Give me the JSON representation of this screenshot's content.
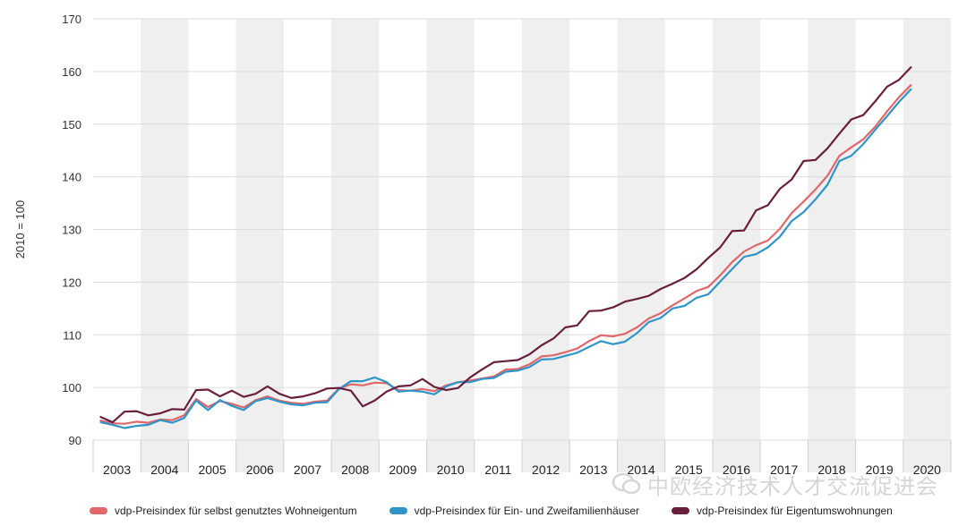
{
  "chart_data": {
    "type": "line",
    "ylabel": "2010 = 100",
    "ylim": [
      90,
      170
    ],
    "yticks": [
      90,
      100,
      110,
      120,
      130,
      140,
      150,
      160,
      170
    ],
    "year_labels": [
      "2003",
      "2004",
      "2005",
      "2006",
      "2007",
      "2008",
      "2009",
      "2010",
      "2011",
      "2012",
      "2013",
      "2014",
      "2015",
      "2016",
      "2017",
      "2018",
      "2019",
      "2020"
    ],
    "shaded_years": [
      "2004",
      "2006",
      "2008",
      "2010",
      "2012",
      "2014",
      "2016",
      "2018",
      "2020"
    ],
    "quarters_per_year": 4,
    "series": [
      {
        "name": "vdp-Preisindex für selbst genutztes Wohneigentum",
        "color": "#e0676a",
        "values": [
          93.7,
          93.2,
          93.1,
          93.5,
          93.3,
          93.9,
          93.8,
          94.7,
          97.8,
          96.3,
          97.4,
          96.9,
          96.2,
          97.6,
          98.3,
          97.5,
          97.1,
          96.9,
          97.3,
          97.5,
          99.8,
          100.6,
          100.4,
          100.9,
          100.8,
          99.5,
          99.4,
          99.7,
          99.3,
          100.4,
          101.0,
          101.3,
          101.7,
          102.1,
          103.4,
          103.5,
          104.4,
          105.9,
          106.1,
          106.7,
          107.4,
          108.8,
          109.9,
          109.7,
          110.2,
          111.4,
          113.1,
          114.1,
          115.6,
          116.9,
          118.3,
          119.1,
          121.3,
          123.8,
          125.8,
          127.0,
          127.9,
          130.1,
          133.1,
          135.3,
          137.6,
          140.2,
          144.0,
          145.6,
          147.1,
          149.5,
          152.4,
          155.1,
          157.4
        ]
      },
      {
        "name": "vdp-Preisindex für Ein- und Zweifamilienhäuser",
        "color": "#2f95c8",
        "values": [
          93.4,
          92.9,
          92.3,
          92.7,
          92.9,
          93.8,
          93.3,
          94.2,
          97.5,
          95.7,
          97.6,
          96.5,
          95.7,
          97.4,
          98.0,
          97.3,
          96.8,
          96.6,
          97.1,
          97.2,
          99.7,
          101.2,
          101.2,
          101.9,
          101.0,
          99.2,
          99.4,
          99.2,
          98.7,
          100.2,
          101.0,
          101.0,
          101.6,
          101.8,
          103.0,
          103.2,
          103.9,
          105.3,
          105.4,
          106.0,
          106.6,
          107.7,
          108.8,
          108.2,
          108.7,
          110.3,
          112.4,
          113.2,
          115.0,
          115.5,
          117.0,
          117.7,
          120.1,
          122.5,
          124.8,
          125.3,
          126.6,
          128.6,
          131.6,
          133.3,
          135.7,
          138.5,
          143.0,
          144.0,
          146.2,
          148.9,
          151.5,
          154.2,
          156.6
        ]
      },
      {
        "name": "vdp-Preisindex für Eigentumswohnungen",
        "color": "#6a1e3e",
        "values": [
          94.4,
          93.4,
          95.4,
          95.5,
          94.7,
          95.1,
          95.9,
          95.8,
          99.5,
          99.6,
          98.3,
          99.4,
          98.2,
          98.8,
          100.2,
          98.8,
          98.0,
          98.3,
          98.9,
          99.8,
          99.9,
          99.4,
          96.4,
          97.5,
          99.2,
          100.2,
          100.4,
          101.6,
          100.1,
          99.5,
          99.9,
          101.9,
          103.4,
          104.8,
          105.0,
          105.2,
          106.3,
          108.0,
          109.3,
          111.4,
          111.8,
          114.5,
          114.6,
          115.2,
          116.3,
          116.8,
          117.4,
          118.7,
          119.7,
          120.8,
          122.4,
          124.6,
          126.6,
          129.7,
          129.8,
          133.6,
          134.6,
          137.7,
          139.5,
          143.0,
          143.2,
          145.4,
          148.2,
          150.9,
          151.7,
          154.3,
          157.1,
          158.4,
          160.8
        ]
      }
    ]
  },
  "legend": {
    "items": [
      {
        "label": "vdp-Preisindex für selbst genutztes Wohneigentum",
        "color": "#e0676a"
      },
      {
        "label": "vdp-Preisindex für Ein- und Zweifamilienhäuser",
        "color": "#2f95c8"
      },
      {
        "label": "vdp-Preisindex für Eigentumswohnungen",
        "color": "#6a1e3e"
      }
    ]
  },
  "watermark": {
    "text": "中欧经济技术人才交流促进会"
  }
}
